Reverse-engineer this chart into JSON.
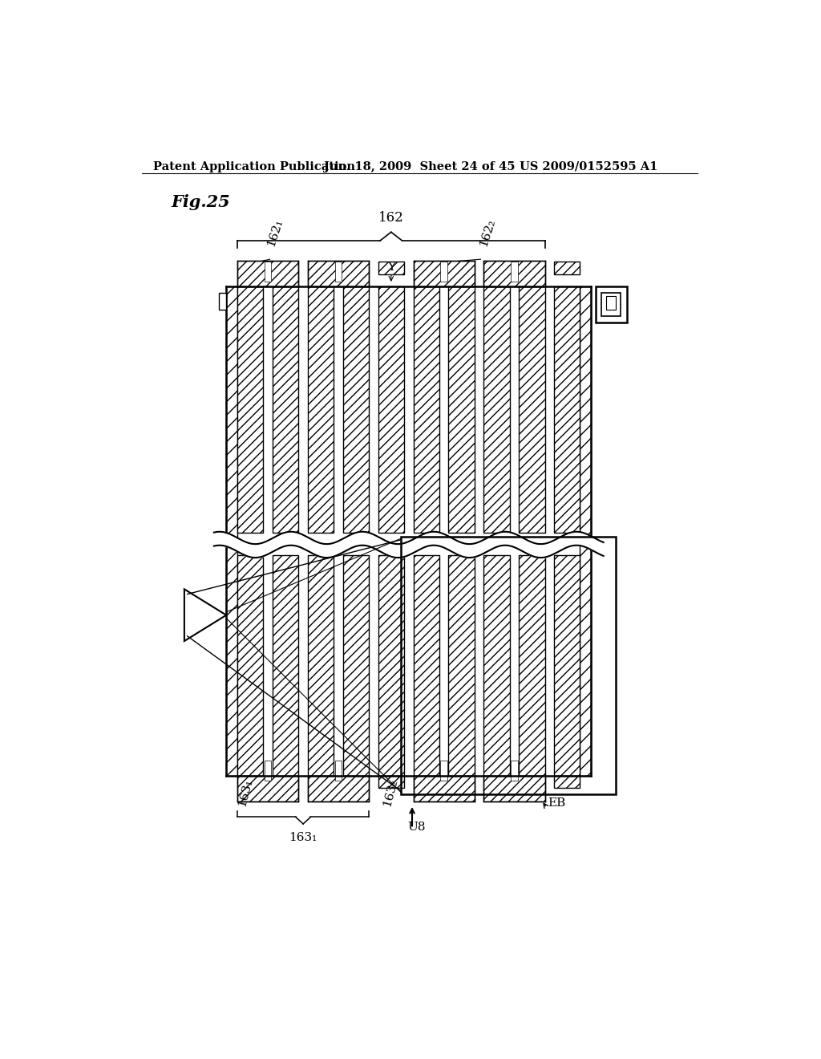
{
  "header_left": "Patent Application Publication",
  "header_mid": "Jun. 18, 2009  Sheet 24 of 45",
  "header_right": "US 2009/0152595 A1",
  "fig_label": "Fig.25",
  "label_162": "162",
  "label_1621": "162₁",
  "label_1622": "162₂",
  "label_Y": "Y",
  "label_1631": "163₁",
  "label_1632": "163₂",
  "label_163brace": "163₁",
  "label_U8": "U8",
  "label_EB": "EB",
  "bg_color": "#ffffff"
}
